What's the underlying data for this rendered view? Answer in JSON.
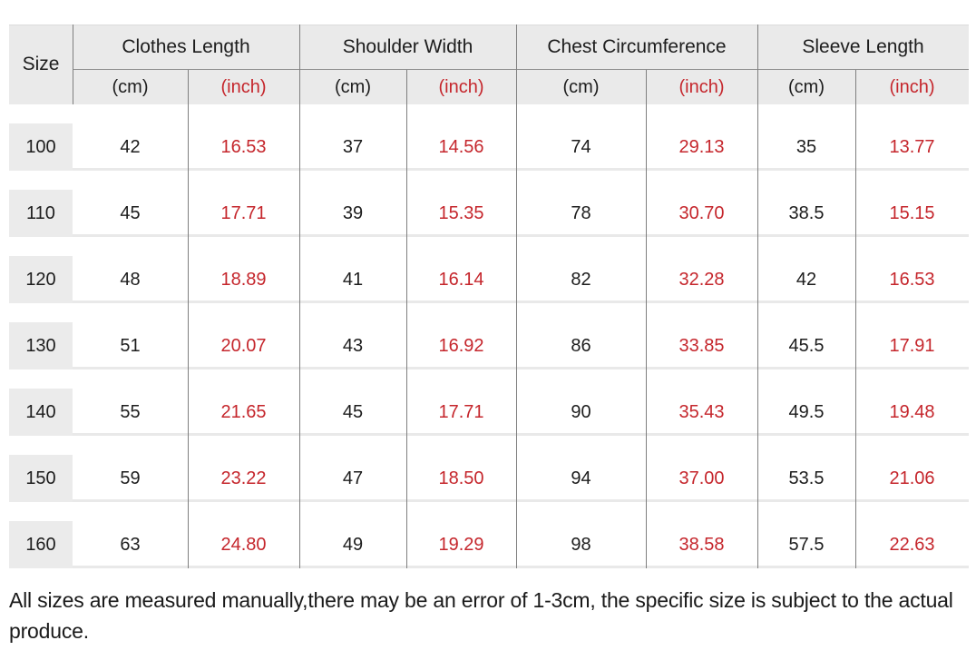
{
  "colors": {
    "accent_red": "#c5262c",
    "header_background": "#eaeaea",
    "size_cell_background": "#ebebeb",
    "grid_line": "#7f7f7f",
    "row_separator": "#e9e9e9",
    "text": "#1d1d1d"
  },
  "table": {
    "corner_label": "Size",
    "groups": [
      {
        "label": "Clothes Length"
      },
      {
        "label": "Shoulder Width"
      },
      {
        "label": "Chest Circumference"
      },
      {
        "label": "Sleeve Length"
      }
    ],
    "units": {
      "cm": "(cm)",
      "inch": "(inch)"
    },
    "rows": [
      {
        "size": "100",
        "values": [
          "42",
          "16.53",
          "37",
          "14.56",
          "74",
          "29.13",
          "35",
          "13.77"
        ]
      },
      {
        "size": "110",
        "values": [
          "45",
          "17.71",
          "39",
          "15.35",
          "78",
          "30.70",
          "38.5",
          "15.15"
        ]
      },
      {
        "size": "120",
        "values": [
          "48",
          "18.89",
          "41",
          "16.14",
          "82",
          "32.28",
          "42",
          "16.53"
        ]
      },
      {
        "size": "130",
        "values": [
          "51",
          "20.07",
          "43",
          "16.92",
          "86",
          "33.85",
          "45.5",
          "17.91"
        ]
      },
      {
        "size": "140",
        "values": [
          "55",
          "21.65",
          "45",
          "17.71",
          "90",
          "35.43",
          "49.5",
          "19.48"
        ]
      },
      {
        "size": "150",
        "values": [
          "59",
          "23.22",
          "47",
          "18.50",
          "94",
          "37.00",
          "53.5",
          "21.06"
        ]
      },
      {
        "size": "160",
        "values": [
          "63",
          "24.80",
          "49",
          "19.29",
          "98",
          "38.58",
          "57.5",
          "22.63"
        ]
      }
    ]
  },
  "note": "All sizes are measured manually,there may be an error of 1-3cm, the specific size is subject to the actual produce.",
  "chart_data": {
    "type": "table",
    "title": "Garment size chart",
    "columns": [
      "Size",
      "Clothes Length (cm)",
      "Clothes Length (inch)",
      "Shoulder Width (cm)",
      "Shoulder Width (inch)",
      "Chest Circumference (cm)",
      "Chest Circumference (inch)",
      "Sleeve Length (cm)",
      "Sleeve Length (inch)"
    ],
    "rows": [
      [
        100,
        42,
        16.53,
        37,
        14.56,
        74,
        29.13,
        35,
        13.77
      ],
      [
        110,
        45,
        17.71,
        39,
        15.35,
        78,
        30.7,
        38.5,
        15.15
      ],
      [
        120,
        48,
        18.89,
        41,
        16.14,
        82,
        32.28,
        42,
        16.53
      ],
      [
        130,
        51,
        20.07,
        43,
        16.92,
        86,
        33.85,
        45.5,
        17.91
      ],
      [
        140,
        55,
        21.65,
        45,
        17.71,
        90,
        35.43,
        49.5,
        19.48
      ],
      [
        150,
        59,
        23.22,
        47,
        18.5,
        94,
        37.0,
        53.5,
        21.06
      ],
      [
        160,
        63,
        24.8,
        49,
        19.29,
        98,
        38.58,
        57.5,
        22.63
      ]
    ],
    "layout_hints": {
      "inch_columns_color": "#c5262c",
      "header_background": "#eaeaea",
      "grid": "partial (group and unit dividers, light row separators)"
    },
    "note": "All sizes are measured manually,there may be an error of 1-3cm, the specific size is subject to the actual produce."
  }
}
